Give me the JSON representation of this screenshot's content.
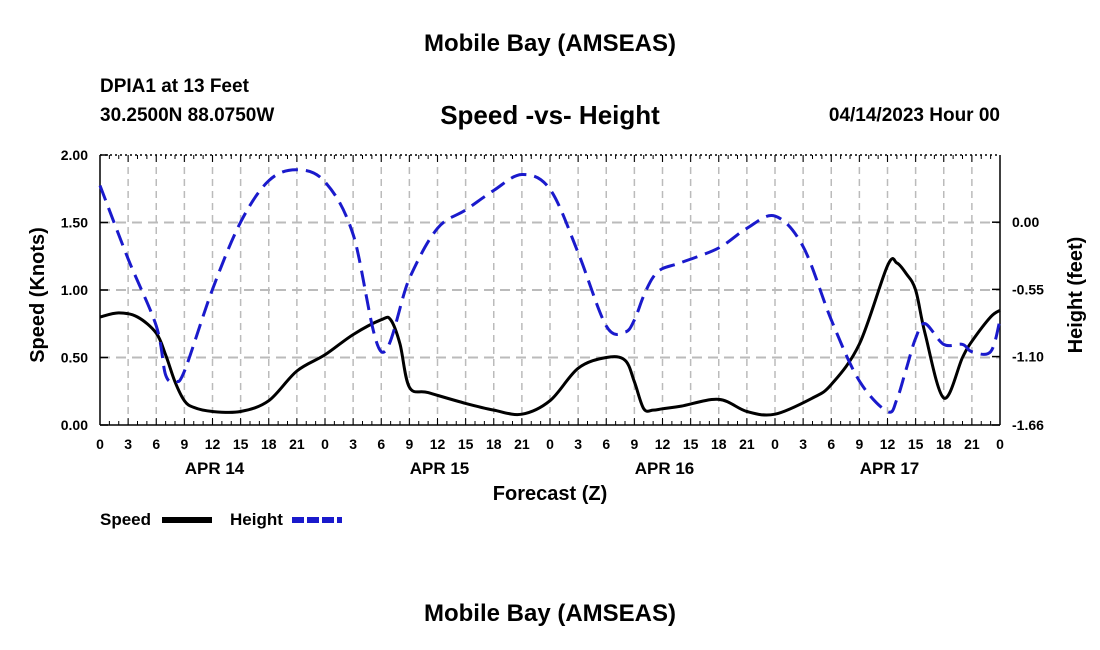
{
  "title": "Mobile Bay (AMSEAS)",
  "station": "DPIA1 at 13 Feet",
  "coordinates": "30.2500N  88.0750W",
  "subtitle": "Speed -vs- Height",
  "datetime": "04/14/2023 Hour 00",
  "footer_title": "Mobile Bay (AMSEAS)",
  "colors": {
    "speed": "#000000",
    "height": "#1a1acc",
    "grid": "#bbbbbb"
  },
  "chart_data": {
    "type": "line",
    "xlabel": "Forecast (Z)",
    "ylabel": "Speed (Knots)",
    "y2label": "Height (feet)",
    "xlim": [
      0,
      96
    ],
    "ylim": [
      0,
      2
    ],
    "y2lim": [
      -1.66,
      0.55
    ],
    "xticks": [
      0,
      3,
      6,
      9,
      12,
      15,
      18,
      21,
      24,
      27,
      30,
      33,
      36,
      39,
      42,
      45,
      48,
      51,
      54,
      57,
      60,
      63,
      66,
      69,
      72,
      75,
      78,
      81,
      84,
      87,
      90,
      93,
      96
    ],
    "xtick_labels": [
      "0",
      "3",
      "6",
      "9",
      "12",
      "15",
      "18",
      "21",
      "0",
      "3",
      "6",
      "9",
      "12",
      "15",
      "18",
      "21",
      "0",
      "3",
      "6",
      "9",
      "12",
      "15",
      "18",
      "21",
      "0",
      "3",
      "6",
      "9",
      "12",
      "15",
      "18",
      "21",
      "0"
    ],
    "yticks": [
      0,
      0.5,
      1,
      1.5,
      2
    ],
    "ytick_labels": [
      "0.00",
      "0.50",
      "1.00",
      "1.50",
      "2.00"
    ],
    "y2ticks": [
      -1.66,
      -1.1,
      -0.55,
      0
    ],
    "y2tick_labels": [
      "-1.66",
      "-1.10",
      "-0.55",
      "0.00"
    ],
    "day_labels": [
      {
        "hour": 12,
        "label": "APR 14"
      },
      {
        "hour": 36,
        "label": "APR 15"
      },
      {
        "hour": 60,
        "label": "APR 16"
      },
      {
        "hour": 84,
        "label": "APR 17"
      }
    ],
    "grid": true,
    "series": [
      {
        "name": "Speed",
        "axis": "left",
        "style": "solid",
        "x": [
          0,
          2,
          4,
          6,
          7,
          8,
          9,
          10,
          12,
          15,
          18,
          21,
          24,
          27,
          30,
          31,
          32,
          33,
          35,
          39,
          42,
          45,
          48,
          51,
          54,
          56,
          57,
          58,
          59,
          60,
          62,
          66,
          69,
          72,
          76,
          78,
          81,
          84,
          85,
          86,
          87,
          88,
          90,
          92,
          93,
          95,
          96
        ],
        "y": [
          0.8,
          0.83,
          0.8,
          0.68,
          0.52,
          0.32,
          0.18,
          0.13,
          0.1,
          0.1,
          0.18,
          0.4,
          0.52,
          0.67,
          0.78,
          0.78,
          0.6,
          0.28,
          0.24,
          0.16,
          0.11,
          0.08,
          0.18,
          0.42,
          0.5,
          0.48,
          0.32,
          0.12,
          0.11,
          0.12,
          0.14,
          0.19,
          0.1,
          0.08,
          0.2,
          0.3,
          0.6,
          1.18,
          1.2,
          1.12,
          1.0,
          0.68,
          0.2,
          0.5,
          0.62,
          0.8,
          0.85
        ]
      },
      {
        "name": "Height",
        "axis": "right",
        "style": "dashed",
        "x": [
          0,
          3,
          6,
          7,
          8,
          9,
          12,
          15,
          18,
          21,
          24,
          27,
          30,
          33,
          36,
          39,
          42,
          45,
          48,
          51,
          54,
          56,
          57,
          58,
          59,
          60,
          62,
          66,
          69,
          72,
          75,
          78,
          81,
          84,
          85,
          86,
          87,
          88,
          90,
          92,
          93,
          95,
          96
        ],
        "y": [
          0.3,
          -0.3,
          -0.85,
          -1.25,
          -1.3,
          -1.22,
          -0.55,
          0.0,
          0.34,
          0.43,
          0.33,
          -0.1,
          -1.06,
          -0.46,
          -0.05,
          0.1,
          0.26,
          0.39,
          0.27,
          -0.25,
          -0.85,
          -0.9,
          -0.8,
          -0.6,
          -0.45,
          -0.38,
          -0.33,
          -0.21,
          -0.05,
          0.05,
          -0.2,
          -0.8,
          -1.3,
          -1.55,
          -1.45,
          -1.2,
          -0.95,
          -0.83,
          -1.0,
          -1.0,
          -1.06,
          -1.06,
          -0.8
        ]
      }
    ],
    "legend": [
      {
        "label": "Speed",
        "color": "#000000",
        "style": "solid"
      },
      {
        "label": "Height",
        "color": "#1a1acc",
        "style": "dashed"
      }
    ]
  }
}
